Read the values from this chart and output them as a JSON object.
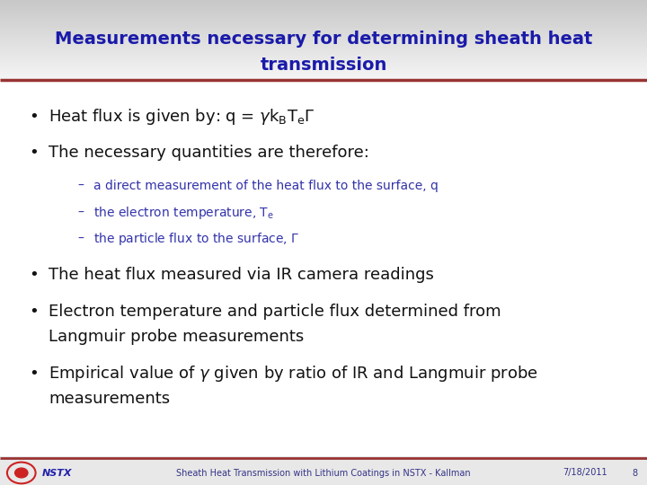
{
  "title_line1": "Measurements necessary for determining sheath heat",
  "title_line2": "transmission",
  "title_color": "#1a1aaa",
  "separator_color": "#993333",
  "bullet_color": "#111111",
  "sub_bullet_color": "#3333aa",
  "footer_text": "Sheath Heat Transmission with Lithium Coatings in NSTX - Kallman",
  "footer_date": "7/18/2011",
  "footer_page": "8",
  "footer_logo": "NSTX",
  "title_fs": 14,
  "main_fs": 13,
  "sub_fs": 10,
  "footer_fs": 7
}
